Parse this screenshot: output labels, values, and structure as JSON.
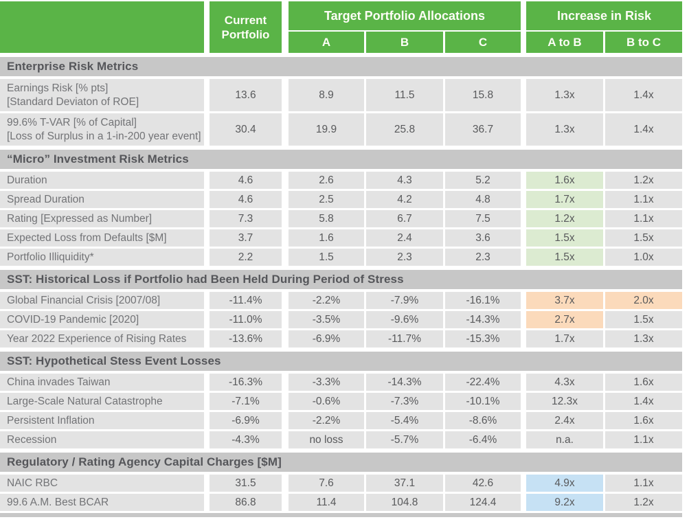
{
  "colors": {
    "header_green": "#5ab447",
    "section_gray": "#c7c7c7",
    "cell_gray": "#e3e3e3",
    "highlight_green": "#dcebd1",
    "highlight_orange": "#fbdabb",
    "highlight_blue": "#c6e1f4"
  },
  "header": {
    "current_portfolio": "Current Portfolio",
    "target_group": "Target Portfolio Allocations",
    "risk_group": "Increase in Risk",
    "target_cols": [
      "A",
      "B",
      "C"
    ],
    "risk_cols": [
      "A to B",
      "B to C"
    ]
  },
  "sections": [
    {
      "title": "Enterprise Risk Metrics",
      "rows": [
        {
          "label": "Earnings Risk [% pts]",
          "sublabel": "[Standard Deviaton of ROE]",
          "current": "13.6",
          "a": "8.9",
          "b": "11.5",
          "c": "15.8",
          "ab": "1.3x",
          "bc": "1.4x"
        },
        {
          "label": "99.6% T-VAR [% of Capital]",
          "sublabel": "[Loss of Surplus in a 1-in-200 year event]",
          "current": "30.4",
          "a": "19.9",
          "b": "25.8",
          "c": "36.7",
          "ab": "1.3x",
          "bc": "1.4x"
        }
      ]
    },
    {
      "title": "“Micro” Investment Risk Metrics",
      "rows": [
        {
          "label": "Duration",
          "current": "4.6",
          "a": "2.6",
          "b": "4.3",
          "c": "5.2",
          "ab": "1.6x",
          "bc": "1.2x",
          "highlight": {
            "ab": "green"
          }
        },
        {
          "label": "Spread Duration",
          "current": "4.6",
          "a": "2.5",
          "b": "4.2",
          "c": "4.8",
          "ab": "1.7x",
          "bc": "1.1x",
          "highlight": {
            "ab": "green"
          }
        },
        {
          "label": "Rating [Expressed as Number]",
          "current": "7.3",
          "a": "5.8",
          "b": "6.7",
          "c": "7.5",
          "ab": "1.2x",
          "bc": "1.1x",
          "highlight": {
            "ab": "green"
          }
        },
        {
          "label": "Expected Loss from Defaults [$M]",
          "current": "3.7",
          "a": "1.6",
          "b": "2.4",
          "c": "3.6",
          "ab": "1.5x",
          "bc": "1.5x",
          "highlight": {
            "ab": "green"
          }
        },
        {
          "label": "Portfolio Illiquidity*",
          "current": "2.2",
          "a": "1.5",
          "b": "2.3",
          "c": "2.3",
          "ab": "1.5x",
          "bc": "1.0x",
          "highlight": {
            "ab": "green"
          }
        }
      ]
    },
    {
      "title": "SST: Historical Loss if Portfolio had Been Held During Period of Stress",
      "rows": [
        {
          "label": "Global Financial Crisis [2007/08]",
          "current": "-11.4%",
          "a": "-2.2%",
          "b": "-7.9%",
          "c": "-16.1%",
          "ab": "3.7x",
          "bc": "2.0x",
          "highlight": {
            "ab": "orange",
            "bc": "orange"
          }
        },
        {
          "label": "COVID-19 Pandemic [2020]",
          "current": "-11.0%",
          "a": "-3.5%",
          "b": "-9.6%",
          "c": "-14.3%",
          "ab": "2.7x",
          "bc": "1.5x",
          "highlight": {
            "ab": "orange"
          }
        },
        {
          "label": "Year 2022 Experience of Rising Rates",
          "current": "-13.6%",
          "a": "-6.9%",
          "b": "-11.7%",
          "c": "-15.3%",
          "ab": "1.7x",
          "bc": "1.3x"
        }
      ]
    },
    {
      "title": "SST: Hypothetical Stess Event Losses",
      "rows": [
        {
          "label": "China invades Taiwan",
          "current": "-16.3%",
          "a": "-3.3%",
          "b": "-14.3%",
          "c": "-22.4%",
          "ab": "4.3x",
          "bc": "1.6x"
        },
        {
          "label": "Large-Scale Natural Catastrophe",
          "current": "-7.1%",
          "a": "-0.6%",
          "b": "-7.3%",
          "c": "-10.1%",
          "ab": "12.3x",
          "bc": "1.4x"
        },
        {
          "label": "Persistent Inflation",
          "current": "-6.9%",
          "a": "-2.2%",
          "b": "-5.4%",
          "c": "-8.6%",
          "ab": "2.4x",
          "bc": "1.6x"
        },
        {
          "label": "Recession",
          "current": "-4.3%",
          "a": "no loss",
          "b": "-5.7%",
          "c": "-6.4%",
          "ab": "n.a.",
          "bc": "1.1x"
        }
      ]
    },
    {
      "title": "Regulatory / Rating Agency Capital Charges [$M]",
      "rows": [
        {
          "label": "NAIC RBC",
          "current": "31.5",
          "a": "7.6",
          "b": "37.1",
          "c": "42.6",
          "ab": "4.9x",
          "bc": "1.1x",
          "highlight": {
            "ab": "blue"
          }
        },
        {
          "label": "99.6 A.M. Best BCAR",
          "current": "86.8",
          "a": "11.4",
          "b": "104.8",
          "c": "124.4",
          "ab": "9.2x",
          "bc": "1.2x",
          "highlight": {
            "ab": "blue"
          }
        }
      ]
    }
  ]
}
